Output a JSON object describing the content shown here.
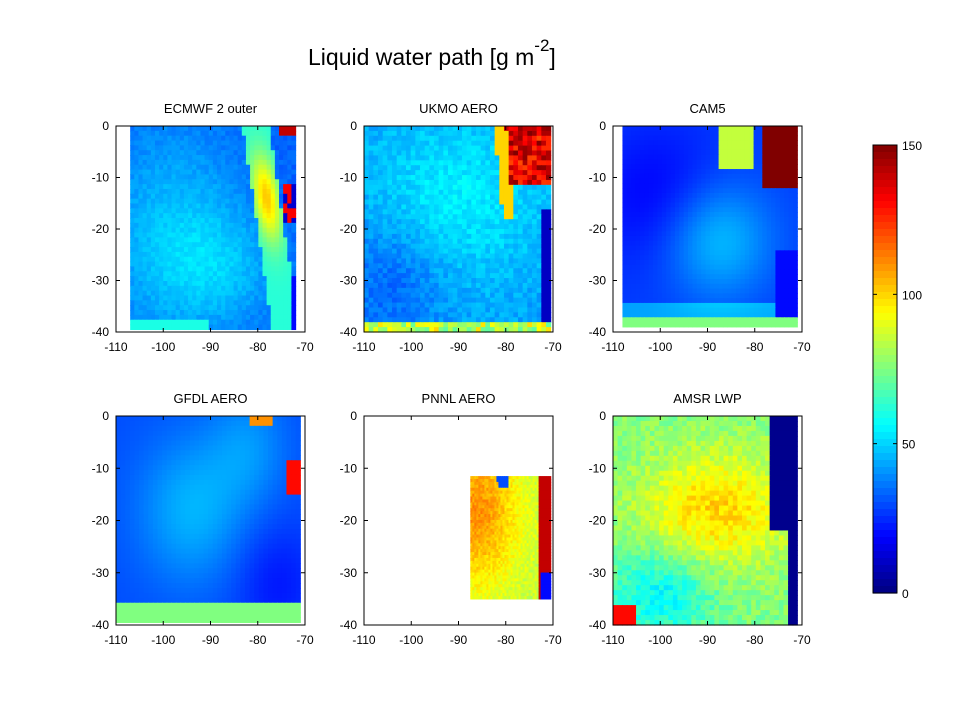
{
  "figure": {
    "title_main": "Liquid water path [g m",
    "title_sup": "-2",
    "title_end": "]"
  },
  "chart_data": [
    {
      "type": "heatmap",
      "title": "ECMWF 2 outer",
      "field": "ecmwf",
      "xlim": [
        -110,
        -70
      ],
      "ylim": [
        -40,
        0
      ],
      "xticks": [
        "-110",
        "-100",
        "-90",
        "-80",
        "-70"
      ],
      "yticks": [
        "0",
        "-10",
        "-20",
        "-30",
        "-40"
      ],
      "domain": {
        "lon": [
          -107,
          -72
        ],
        "lat": [
          -39.5,
          0
        ]
      }
    },
    {
      "type": "heatmap",
      "title": "UKMO AERO",
      "field": "ukmo",
      "xlim": [
        -110,
        -70
      ],
      "ylim": [
        -40,
        0
      ],
      "xticks": [
        "-110",
        "-100",
        "-90",
        "-80",
        "-70"
      ],
      "yticks": [
        "0",
        "-10",
        "-20",
        "-30",
        "-40"
      ],
      "domain": {
        "lon": [
          -110,
          -70.5
        ],
        "lat": [
          -40,
          0
        ]
      }
    },
    {
      "type": "heatmap",
      "title": "CAM5",
      "field": "cam5",
      "xlim": [
        -110,
        -70
      ],
      "ylim": [
        -40,
        0
      ],
      "xticks": [
        "-110",
        "-100",
        "-90",
        "-80",
        "-70"
      ],
      "yticks": [
        "0",
        "-10",
        "-20",
        "-30",
        "-40"
      ],
      "domain": {
        "lon": [
          -108,
          -71
        ],
        "lat": [
          -39,
          0
        ]
      }
    },
    {
      "type": "heatmap",
      "title": "GFDL AERO",
      "field": "gfdl",
      "xlim": [
        -110,
        -70
      ],
      "ylim": [
        -40,
        0
      ],
      "xticks": [
        "-110",
        "-100",
        "-90",
        "-80",
        "-70"
      ],
      "yticks": [
        "0",
        "-10",
        "-20",
        "-30",
        "-40"
      ],
      "domain": {
        "lon": [
          -110,
          -71
        ],
        "lat": [
          -39.5,
          0
        ]
      }
    },
    {
      "type": "heatmap",
      "title": "PNNL AERO",
      "field": "pnnl",
      "xlim": [
        -110,
        -70
      ],
      "ylim": [
        -40,
        0
      ],
      "xticks": [
        "-110",
        "-100",
        "-90",
        "-80",
        "-70"
      ],
      "yticks": [
        "0",
        "-10",
        "-20",
        "-30",
        "-40"
      ],
      "domain": {
        "lon": [
          -87.5,
          -70.5
        ],
        "lat": [
          -35,
          -11.5
        ]
      }
    },
    {
      "type": "heatmap",
      "title": "AMSR LWP",
      "field": "amsr",
      "xlim": [
        -110,
        -70
      ],
      "ylim": [
        -40,
        0
      ],
      "xticks": [
        "-110",
        "-100",
        "-90",
        "-80",
        "-70"
      ],
      "yticks": [
        "0",
        "-10",
        "-20",
        "-30",
        "-40"
      ],
      "domain": {
        "lon": [
          -110,
          -71
        ],
        "lat": [
          -40,
          0
        ]
      }
    }
  ],
  "colorbar": {
    "colormap": "jet",
    "range": [
      0,
      150
    ],
    "ticks": [
      "150",
      "100",
      "50",
      "0"
    ]
  }
}
